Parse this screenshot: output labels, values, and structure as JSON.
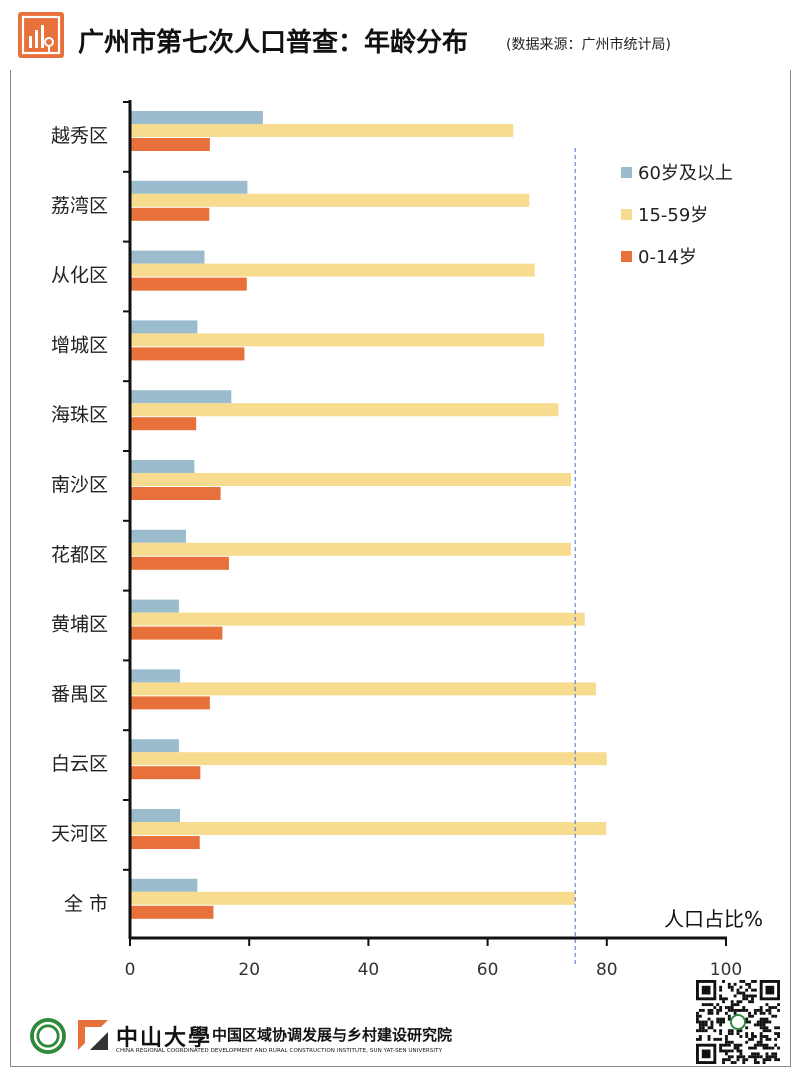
{
  "header": {
    "title": "广州市第七次人口普查：年龄分布",
    "source": "(数据来源：广州市统计局)",
    "logo_icon": "bar-chart-icon"
  },
  "chart_data": {
    "type": "bar",
    "orientation": "horizontal",
    "title": "广州市第七次人口普查：年龄分布",
    "xlabel": "人口占比%",
    "ylabel": "",
    "xlim": [
      0,
      100
    ],
    "xticks": [
      0,
      20,
      40,
      60,
      80,
      100
    ],
    "categories": [
      "越秀区",
      "荔湾区",
      "从化区",
      "增城区",
      "海珠区",
      "南沙区",
      "花都区",
      "黄埔区",
      "番禺区",
      "白云区",
      "天河区",
      "全 市"
    ],
    "series": [
      {
        "name": "60岁及以上",
        "color": "#9bbccd",
        "values": [
          22.3,
          19.7,
          12.5,
          11.3,
          17.0,
          10.8,
          9.4,
          8.2,
          8.4,
          8.2,
          8.4,
          11.3
        ]
      },
      {
        "name": "15-59岁",
        "color": "#f7dc8f",
        "values": [
          64.3,
          67.0,
          67.9,
          69.5,
          71.9,
          74.0,
          74.0,
          76.3,
          78.2,
          80.0,
          79.9,
          74.7
        ]
      },
      {
        "name": "0-14岁",
        "color": "#e8703a",
        "values": [
          13.4,
          13.3,
          19.6,
          19.2,
          11.1,
          15.2,
          16.6,
          15.5,
          13.4,
          11.8,
          11.7,
          14.0
        ]
      }
    ],
    "reference_line": {
      "value": 74.7,
      "style": "dashed",
      "color": "#4a74c9"
    },
    "legend": {
      "position": "top-right",
      "entries": [
        "60岁及以上",
        "15-59岁",
        "0-14岁"
      ]
    },
    "grid": false
  },
  "footer": {
    "university": "中山大學",
    "institute": "中国区域协调发展与乡村建设研究院",
    "institute_en": "CHINA REGIONAL COORDINATED DEVELOPMENT AND RURAL CONSTRUCTION INSTITUTE, SUN YAT-SEN UNIVERSITY",
    "seal_icon": "university-seal-icon",
    "mark_icon": "institute-logo-icon",
    "qr_icon": "qr-code-icon"
  }
}
